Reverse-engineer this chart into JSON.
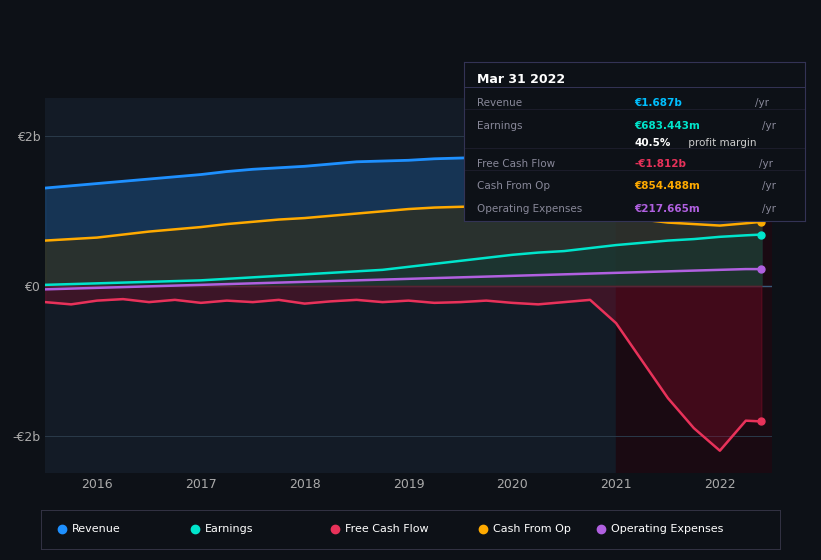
{
  "bg_color": "#0d1117",
  "plot_bg_color": "#131b26",
  "grid_color": "#2a3a4a",
  "title_box": {
    "title": "Mar 31 2022",
    "rows": [
      {
        "label": "Revenue",
        "value": "€1.687b /yr",
        "value_color": "#00bfff"
      },
      {
        "label": "Earnings",
        "value": "€683.443m /yr",
        "value_color": "#00e5cc"
      },
      {
        "label": "",
        "value": "40.5% profit margin",
        "value_color": "#ffffff",
        "bold_part": "40.5%"
      },
      {
        "label": "Free Cash Flow",
        "value": "-€1.812b /yr",
        "value_color": "#e8325a"
      },
      {
        "label": "Cash From Op",
        "value": "€854.488m /yr",
        "value_color": "#ffaa00"
      },
      {
        "label": "Operating Expenses",
        "value": "€217.665m /yr",
        "value_color": "#b060e0"
      }
    ]
  },
  "ylim": [
    -2500000000.0,
    2500000000.0
  ],
  "xlim_start": 2015.5,
  "xlim_end": 2022.5,
  "yticks": [
    -2000000000.0,
    0,
    2000000000.0
  ],
  "ytick_labels": [
    "-€2b",
    "€0",
    "€2b"
  ],
  "xticks": [
    2016,
    2017,
    2018,
    2019,
    2020,
    2021,
    2022
  ],
  "legend_items": [
    {
      "label": "Revenue",
      "color": "#1e90ff"
    },
    {
      "label": "Earnings",
      "color": "#00e5cc"
    },
    {
      "label": "Free Cash Flow",
      "color": "#e8325a"
    },
    {
      "label": "Cash From Op",
      "color": "#ffaa00"
    },
    {
      "label": "Operating Expenses",
      "color": "#b060e0"
    }
  ],
  "highlight_rect": {
    "x_start": 2021.0,
    "x_end": 2022.5,
    "color": "#1a0a12"
  },
  "series": {
    "x": [
      2015.5,
      2015.75,
      2016.0,
      2016.25,
      2016.5,
      2016.75,
      2017.0,
      2017.25,
      2017.5,
      2017.75,
      2018.0,
      2018.25,
      2018.5,
      2018.75,
      2019.0,
      2019.25,
      2019.5,
      2019.75,
      2020.0,
      2020.25,
      2020.5,
      2020.75,
      2021.0,
      2021.25,
      2021.5,
      2021.75,
      2022.0,
      2022.25,
      2022.4
    ],
    "revenue": [
      1300000000.0,
      1330000000.0,
      1360000000.0,
      1390000000.0,
      1420000000.0,
      1450000000.0,
      1480000000.0,
      1520000000.0,
      1550000000.0,
      1570000000.0,
      1590000000.0,
      1620000000.0,
      1650000000.0,
      1660000000.0,
      1670000000.0,
      1690000000.0,
      1700000000.0,
      1710000000.0,
      1720000000.0,
      1700000000.0,
      1680000000.0,
      1650000000.0,
      1600000000.0,
      1580000000.0,
      1570000000.0,
      1600000000.0,
      1650000000.0,
      1720000000.0,
      1750000000.0
    ],
    "earnings": [
      10000000.0,
      20000000.0,
      30000000.0,
      40000000.0,
      50000000.0,
      60000000.0,
      70000000.0,
      90000000.0,
      110000000.0,
      130000000.0,
      150000000.0,
      170000000.0,
      190000000.0,
      210000000.0,
      250000000.0,
      290000000.0,
      330000000.0,
      370000000.0,
      410000000.0,
      440000000.0,
      460000000.0,
      500000000.0,
      540000000.0,
      570000000.0,
      600000000.0,
      620000000.0,
      650000000.0,
      670000000.0,
      680000000.0
    ],
    "free_cash_flow": [
      -220000000.0,
      -250000000.0,
      -200000000.0,
      -180000000.0,
      -220000000.0,
      -190000000.0,
      -230000000.0,
      -200000000.0,
      -220000000.0,
      -190000000.0,
      -240000000.0,
      -210000000.0,
      -190000000.0,
      -220000000.0,
      -200000000.0,
      -230000000.0,
      -220000000.0,
      -200000000.0,
      -230000000.0,
      -250000000.0,
      -220000000.0,
      -190000000.0,
      -500000000.0,
      -1000000000.0,
      -1500000000.0,
      -1900000000.0,
      -2200000000.0,
      -1800000000.0,
      -1810000000.0
    ],
    "cash_from_op": [
      600000000.0,
      620000000.0,
      640000000.0,
      680000000.0,
      720000000.0,
      750000000.0,
      780000000.0,
      820000000.0,
      850000000.0,
      880000000.0,
      900000000.0,
      930000000.0,
      960000000.0,
      990000000.0,
      1020000000.0,
      1040000000.0,
      1050000000.0,
      1060000000.0,
      1070000000.0,
      1050000000.0,
      1020000000.0,
      980000000.0,
      920000000.0,
      880000000.0,
      840000000.0,
      820000000.0,
      800000000.0,
      830000000.0,
      850000000.0
    ],
    "op_expenses": [
      -50000000.0,
      -40000000.0,
      -30000000.0,
      -20000000.0,
      -10000000.0,
      0.0,
      10000000.0,
      20000000.0,
      30000000.0,
      40000000.0,
      50000000.0,
      60000000.0,
      70000000.0,
      80000000.0,
      90000000.0,
      100000000.0,
      110000000.0,
      120000000.0,
      130000000.0,
      140000000.0,
      150000000.0,
      160000000.0,
      170000000.0,
      180000000.0,
      190000000.0,
      200000000.0,
      210000000.0,
      220000000.0,
      220000000.0
    ]
  }
}
